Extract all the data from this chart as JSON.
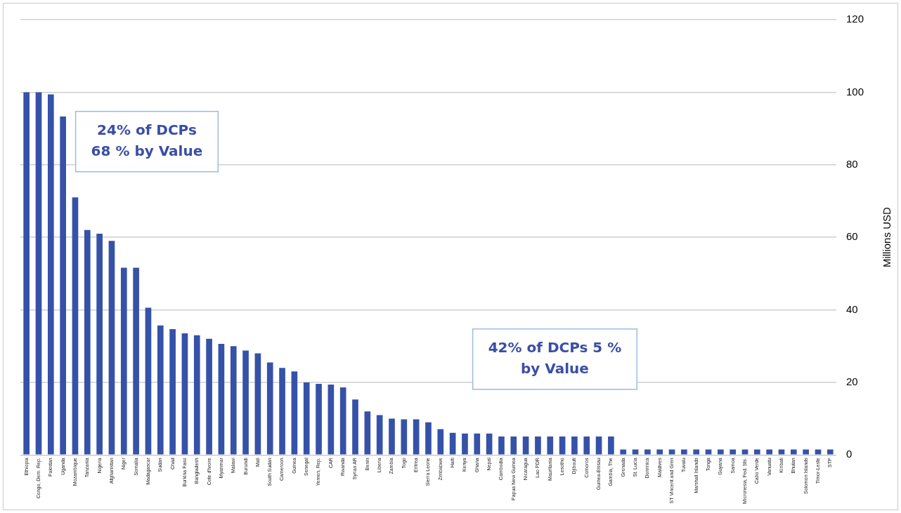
{
  "chart_data": {
    "type": "bar",
    "categories": [
      "Ethiopia",
      "Congo, Dem. Rep.",
      "Pakistan",
      "Uganda",
      "Mozambique",
      "Tanzania",
      "Nigeria",
      "Afghanistan",
      "Niger",
      "Somalia",
      "Madagascar",
      "Sudan",
      "Chad",
      "Burkina Faso",
      "Bangladesh",
      "Cote d'Ivoire",
      "Myanmar",
      "Malawi",
      "Burundi",
      "Mali",
      "South Sudan",
      "Cameroon",
      "Guinea",
      "Senegal",
      "Yemen, Rep.",
      "CAR",
      "Rwanda",
      "Syrian AR",
      "Benin",
      "Liberia",
      "Zambia",
      "Togo",
      "Eritrea",
      "Sierra Leone",
      "Zimbabwe",
      "Haiti",
      "Kenya",
      "Ghana",
      "Nepal",
      "Cambodia",
      "Papua New Guinea",
      "Nicaragua",
      "Lao PDR",
      "Mauritania",
      "Lesotho",
      "Djibouti",
      "Comoros",
      "Guinea-Bissau",
      "Gambia, The",
      "Grenada",
      "St. Lucia",
      "Dominica",
      "Maldives",
      "ST Vincent and Gren",
      "Tuvalu",
      "Marshall Islands",
      "Tonga",
      "Guyana",
      "Samoa",
      "Micronesia, Fed. Sts.",
      "Cabo Verde",
      "Vanuatu",
      "Kiribati",
      "Bhutan",
      "Solomon Islands",
      "Timor-Leste",
      "STP"
    ],
    "values": [
      100,
      100,
      99.4,
      93.3,
      71,
      62,
      61,
      59,
      51.6,
      51.6,
      40.6,
      35.7,
      34.7,
      33.5,
      33,
      32,
      30.6,
      30,
      28.8,
      28,
      25.5,
      24,
      23,
      20,
      19.6,
      19.4,
      18.6,
      15.3,
      12,
      11,
      10,
      9.8,
      9.8,
      9,
      7.1,
      6.1,
      5.9,
      5.9,
      5.9,
      5.1,
      5.1,
      5.1,
      5.1,
      5.1,
      5.1,
      5.1,
      5.1,
      5.1,
      5.1,
      1.5,
      1.5,
      1.5,
      1.5,
      1.5,
      1.5,
      1.5,
      1.5,
      1.5,
      1.5,
      1.5,
      1.5,
      1.5,
      1.5,
      1.5,
      1.5,
      1.5,
      1.5
    ],
    "color": "#3552a8",
    "ylabel": "Millions USD",
    "ylim": [
      0,
      120
    ],
    "yticks": [
      0,
      20,
      40,
      60,
      80,
      100,
      120
    ],
    "grid": "y",
    "annotations": [
      "24% of DCPs 68 % by Value",
      "42% of DCPs 5 % by Value"
    ]
  }
}
